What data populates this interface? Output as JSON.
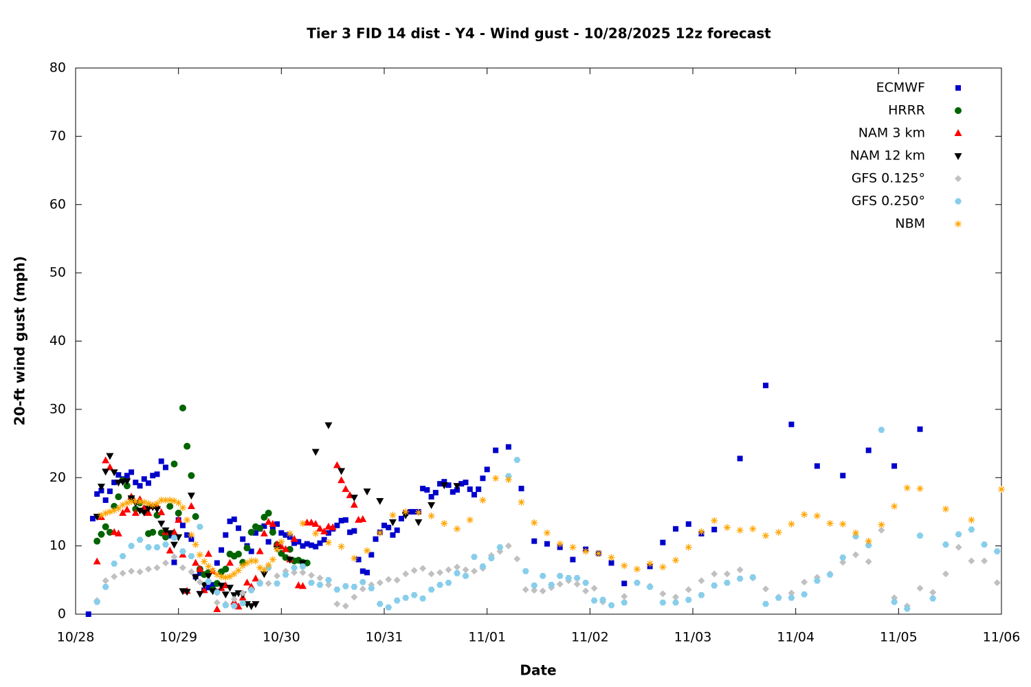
{
  "chart_data": {
    "type": "scatter",
    "title": "Tier 3 FID 14 dist - Y4 - Wind gust - 10/28/2025 12z forecast",
    "x_label": "Date",
    "y_label": "20-ft wind gust (mph)",
    "xlim": [
      0,
      216
    ],
    "xticks": [
      {
        "value": 0,
        "label": "10/28"
      },
      {
        "value": 24,
        "label": "10/29"
      },
      {
        "value": 48,
        "label": "10/30"
      },
      {
        "value": 72,
        "label": "10/31"
      },
      {
        "value": 96,
        "label": "11/01"
      },
      {
        "value": 120,
        "label": "11/02"
      },
      {
        "value": 144,
        "label": "11/03"
      },
      {
        "value": 168,
        "label": "11/04"
      },
      {
        "value": 192,
        "label": "11/05"
      },
      {
        "value": 216,
        "label": "11/06"
      }
    ],
    "ylim": [
      0,
      80
    ],
    "yticks": [
      0,
      10,
      20,
      30,
      40,
      50,
      60,
      70,
      80
    ],
    "legend": "top-right",
    "series": [
      {
        "name": "ECMWF",
        "color": "#0000cc",
        "marker": "square",
        "x": [
          3,
          4,
          5,
          6,
          7,
          8,
          9,
          10,
          11,
          12,
          13,
          14,
          15,
          16,
          17,
          18,
          19,
          20,
          21,
          22,
          23,
          24,
          25,
          26,
          27,
          28,
          29,
          30,
          31,
          32,
          33,
          34,
          35,
          36,
          37,
          38,
          39,
          40,
          41,
          42,
          43,
          44,
          45,
          46,
          47,
          48,
          49,
          50,
          51,
          52,
          53,
          54,
          55,
          56,
          57,
          58,
          59,
          60,
          61,
          62,
          63,
          64,
          65,
          66,
          67,
          68,
          69,
          70,
          71,
          72,
          73,
          74,
          75,
          76,
          77,
          78,
          79,
          80,
          81,
          82,
          83,
          84,
          85,
          86,
          87,
          88,
          89,
          90,
          91,
          92,
          93,
          94,
          95,
          96,
          98,
          101,
          104,
          107,
          110,
          113,
          116,
          119,
          122,
          125,
          128,
          134,
          137,
          140,
          143,
          146,
          149,
          155,
          161,
          167,
          173,
          179,
          185,
          191,
          197
        ],
        "values": [
          0,
          14,
          17.6,
          18.1,
          16.7,
          18,
          19.3,
          20.4,
          19.8,
          20.3,
          20.8,
          19.3,
          18.8,
          19.8,
          19.2,
          20.3,
          20.5,
          22.4,
          21.5,
          11.5,
          7.6,
          13.8,
          13,
          11.6,
          11,
          5.5,
          6,
          3.5,
          3.9,
          4.3,
          7.5,
          9.4,
          11.6,
          13.6,
          13.9,
          12.6,
          11,
          10,
          9.2,
          11.9,
          12.5,
          12.9,
          10.6,
          12.6,
          13.2,
          11.9,
          11.6,
          11.3,
          10.4,
          10.6,
          10,
          10.3,
          10.1,
          9.9,
          10.4,
          10.9,
          11.9,
          12.5,
          13,
          13.7,
          13.8,
          12,
          12.2,
          8,
          6.3,
          6.1,
          8.7,
          11,
          12,
          13,
          12.7,
          11.6,
          12.3,
          14,
          14.8,
          15,
          15,
          15,
          18.4,
          18.2,
          17.2,
          17.8,
          19.1,
          19.4,
          18.9,
          17.9,
          18.2,
          19.1,
          19.3,
          18.3,
          17.5,
          18.3,
          19.9,
          21.2,
          24,
          24.5,
          18.4,
          10.7,
          10.3,
          9.8,
          8,
          9.5,
          8.9,
          7.5,
          4.5,
          7,
          10.5,
          12.5,
          13.2,
          11.8,
          12.4,
          22.8,
          33.5,
          27.8,
          21.7,
          20.3,
          24,
          21.7,
          27.1
        ]
      },
      {
        "name": "HRRR",
        "color": "#006400",
        "marker": "circle",
        "x": [
          5,
          6,
          7,
          8,
          9,
          10,
          11,
          12,
          13,
          14,
          15,
          16,
          17,
          18,
          19,
          20,
          21,
          22,
          23,
          24,
          25,
          26,
          27,
          28,
          29,
          30,
          31,
          32,
          33,
          34,
          35,
          36,
          37,
          38,
          39,
          40,
          41,
          42,
          43,
          44,
          45,
          46,
          47,
          48,
          49,
          50,
          51,
          52,
          53,
          54
        ],
        "values": [
          10.7,
          11.7,
          12.8,
          12,
          15.8,
          17.2,
          19.6,
          18.8,
          17,
          15.4,
          16.3,
          15.1,
          11.8,
          12,
          14.5,
          11.9,
          11.3,
          15.8,
          22,
          14.8,
          30.2,
          24.6,
          20.3,
          14.3,
          6.6,
          5.8,
          6.1,
          3.6,
          4.5,
          6.2,
          6.6,
          8.8,
          8.5,
          8.8,
          7.6,
          9.7,
          12,
          12.8,
          12.6,
          14.2,
          14.8,
          12,
          10.2,
          8.9,
          8.3,
          9.5,
          7.8,
          7.9,
          7.6,
          7.5
        ]
      },
      {
        "name": "NAM 3 km",
        "color": "#ff0000",
        "marker": "triangle-up",
        "x": [
          5,
          6,
          7,
          8,
          9,
          10,
          11,
          12,
          13,
          14,
          15,
          16,
          17,
          18,
          19,
          20,
          21,
          22,
          23,
          24,
          25,
          26,
          27,
          28,
          29,
          30,
          31,
          32,
          33,
          34,
          35,
          36,
          37,
          38,
          39,
          40,
          41,
          42,
          43,
          44,
          45,
          46,
          47,
          48,
          49,
          50,
          51,
          52,
          53,
          54,
          55,
          56,
          57,
          58,
          59,
          60,
          61,
          62,
          63,
          64,
          65,
          66,
          67
        ],
        "values": [
          7.7,
          14.2,
          22.5,
          21.5,
          12,
          11.8,
          14.8,
          15.3,
          17.2,
          14.8,
          16.8,
          15.6,
          14.8,
          15.8,
          15.8,
          14.9,
          12,
          9.3,
          12,
          13.8,
          8.7,
          3.4,
          15.8,
          7.5,
          6.6,
          3.5,
          8.8,
          6.3,
          0.7,
          3.8,
          4.2,
          7.5,
          1.8,
          1.1,
          2.4,
          4.6,
          4,
          5.2,
          9.2,
          11.8,
          13.5,
          13.2,
          10.2,
          9.9,
          9.5,
          8,
          11,
          4.2,
          4.1,
          13.4,
          13.4,
          13.2,
          12.5,
          12.1,
          12.8,
          12.7,
          21.8,
          19.6,
          18.3,
          17.4,
          16,
          13.8,
          13.9
        ]
      },
      {
        "name": "NAM 12 km",
        "color": "#000000",
        "marker": "triangle-down",
        "x": [
          5,
          6,
          7,
          8,
          9,
          10,
          11,
          12,
          13,
          14,
          15,
          16,
          17,
          18,
          19,
          20,
          21,
          22,
          23,
          24,
          25,
          26,
          27,
          28,
          29,
          30,
          31,
          32,
          33,
          34,
          35,
          36,
          37,
          38,
          39,
          40,
          41,
          42,
          44,
          47,
          50,
          53,
          56,
          59,
          62,
          65,
          68,
          71,
          74,
          77,
          80,
          83,
          86,
          89
        ],
        "values": [
          14.3,
          18.7,
          20.9,
          23.2,
          20.8,
          19.3,
          19.4,
          19.5,
          17,
          16.3,
          15.2,
          14.9,
          15.5,
          15.7,
          15.4,
          13.3,
          12.3,
          11.9,
          10.2,
          11.3,
          3.4,
          3.3,
          17.4,
          5.4,
          3,
          4.3,
          5.6,
          3.4,
          3.3,
          4.2,
          2.9,
          3.9,
          2.8,
          3.1,
          2.9,
          1.5,
          1.2,
          1.5,
          5.9,
          9.6,
          8,
          7.5,
          23.8,
          27.7,
          21,
          17.1,
          18,
          16.6,
          13.5,
          14.5,
          13.5,
          16,
          18.9,
          18.8
        ]
      },
      {
        "name": "GFS 0.125°",
        "color": "#c0c0c0",
        "marker": "diamond",
        "x": [
          5,
          7,
          9,
          11,
          13,
          15,
          17,
          19,
          21,
          23,
          25,
          27,
          29,
          31,
          33,
          35,
          37,
          39,
          41,
          43,
          45,
          47,
          49,
          51,
          53,
          55,
          57,
          59,
          61,
          63,
          65,
          67,
          69,
          71,
          73,
          75,
          77,
          79,
          81,
          83,
          85,
          87,
          89,
          91,
          93,
          95,
          97,
          99,
          101,
          103,
          105,
          107,
          109,
          111,
          113,
          115,
          117,
          119,
          121,
          123,
          128,
          131,
          134,
          137,
          140,
          143,
          146,
          149,
          152,
          155,
          158,
          161,
          164,
          167,
          170,
          173,
          176,
          179,
          182,
          185,
          188,
          191,
          194,
          197,
          200,
          203,
          206,
          209,
          212,
          215
        ],
        "values": [
          2,
          4.9,
          5.5,
          6,
          6.3,
          6.2,
          6.6,
          6.8,
          7.5,
          8.4,
          6.8,
          6.2,
          4.7,
          4.8,
          1.7,
          1.5,
          2.2,
          3.1,
          3.6,
          4.7,
          4.5,
          5.6,
          6.3,
          6.1,
          6.1,
          5.7,
          5.3,
          4.3,
          1.5,
          1.2,
          2.5,
          3.7,
          4.3,
          4.6,
          5.1,
          5,
          5.9,
          6.4,
          6.7,
          5.9,
          6.1,
          6.5,
          6.9,
          6.5,
          6.3,
          6.7,
          8.6,
          9.2,
          10,
          8.1,
          3.6,
          3.5,
          3.4,
          3.9,
          4.4,
          4.9,
          4.4,
          3.4,
          3.8,
          1.8,
          2.6,
          4.6,
          4.1,
          3,
          2.5,
          3.6,
          4.9,
          5.9,
          5.9,
          6.5,
          5.3,
          3.7,
          2.5,
          3.1,
          4.7,
          5.4,
          5.9,
          7.6,
          8.7,
          7.7,
          12.3,
          2.4,
          1.2,
          3.8,
          3.2,
          5.9,
          9.8,
          7.8,
          7.8,
          4.6
        ]
      },
      {
        "name": "GFS 0.250°",
        "color": "#87ceeb",
        "marker": "hexagon",
        "x": [
          5,
          7,
          9,
          11,
          13,
          15,
          17,
          19,
          21,
          23,
          25,
          27,
          29,
          31,
          33,
          35,
          37,
          39,
          41,
          43,
          45,
          47,
          49,
          51,
          53,
          55,
          57,
          59,
          61,
          63,
          65,
          67,
          69,
          71,
          73,
          75,
          77,
          79,
          81,
          83,
          85,
          87,
          89,
          91,
          93,
          95,
          97,
          99,
          101,
          103,
          105,
          107,
          109,
          111,
          113,
          115,
          117,
          119,
          121,
          123,
          125,
          128,
          131,
          134,
          137,
          140,
          143,
          146,
          149,
          152,
          155,
          158,
          161,
          164,
          167,
          170,
          173,
          176,
          179,
          182,
          185,
          188,
          191,
          194,
          197,
          200,
          203,
          206,
          209,
          212,
          215
        ],
        "values": [
          1.8,
          4,
          7.4,
          8.5,
          10,
          10.9,
          9.8,
          9.8,
          10.2,
          11.2,
          9.2,
          8.5,
          12.8,
          4.8,
          3.2,
          1.3,
          1.2,
          1.6,
          3.5,
          4.5,
          6.8,
          4.5,
          5.8,
          6.8,
          7,
          4.6,
          4.3,
          5,
          3.6,
          4.1,
          4,
          4.7,
          3.8,
          1.5,
          1,
          2,
          2.4,
          2.8,
          2.3,
          3.6,
          4.3,
          4.6,
          6,
          5.6,
          8.4,
          7,
          8.2,
          9.8,
          20.2,
          22.6,
          6.3,
          4.2,
          5.6,
          4.3,
          5.6,
          5.3,
          5.3,
          4.6,
          2,
          2.1,
          1.3,
          1.7,
          4.6,
          4,
          1.7,
          1.7,
          2.1,
          2.8,
          4.2,
          4.6,
          5.2,
          5.4,
          1.5,
          2.4,
          2.4,
          2.9,
          4.9,
          5.8,
          8.3,
          11.4,
          10.1,
          27,
          1.8,
          0.8,
          11.5,
          2.3,
          10.2,
          11.7,
          12.4,
          10.2,
          9.2
        ]
      },
      {
        "name": "NBM",
        "color": "#ffa500",
        "marker": "asterisk",
        "x": [
          6,
          7,
          8,
          9,
          10,
          11,
          12,
          13,
          14,
          15,
          16,
          17,
          18,
          19,
          20,
          21,
          22,
          23,
          24,
          25,
          26,
          27,
          28,
          29,
          30,
          31,
          32,
          33,
          34,
          35,
          36,
          37,
          38,
          39,
          40,
          41,
          42,
          43,
          44,
          45,
          46,
          47,
          48,
          50,
          53,
          56,
          59,
          62,
          65,
          68,
          71,
          74,
          77,
          80,
          83,
          86,
          89,
          92,
          95,
          98,
          101,
          104,
          107,
          110,
          113,
          116,
          119,
          122,
          125,
          128,
          131,
          134,
          137,
          140,
          143,
          146,
          149,
          152,
          155,
          158,
          161,
          164,
          167,
          170,
          173,
          176,
          179,
          182,
          185,
          188,
          191,
          194,
          197,
          203,
          209,
          216
        ],
        "values": [
          14.5,
          14.8,
          15,
          15.2,
          15.5,
          16,
          16.3,
          16.5,
          16.5,
          16.5,
          16.4,
          16.2,
          16,
          16.2,
          16.7,
          16.7,
          16.7,
          16.6,
          16.3,
          15.6,
          13.8,
          11.6,
          10.2,
          8.7,
          7.7,
          7,
          6.4,
          5.8,
          5.5,
          5.4,
          5.5,
          5.9,
          6.4,
          7.1,
          7.5,
          7.8,
          7.8,
          6.8,
          6.5,
          7.2,
          8,
          9.5,
          10.6,
          11.8,
          13.3,
          11.8,
          10.5,
          9.9,
          8.2,
          9.3,
          11.9,
          14.5,
          15,
          14.9,
          14.4,
          13.3,
          12.5,
          13.8,
          16.7,
          19.9,
          19.7,
          16.4,
          13.4,
          11.9,
          10.3,
          9.8,
          9.2,
          8.9,
          8.3,
          7.1,
          6.6,
          7.4,
          6.9,
          7.9,
          9.8,
          12.1,
          13.7,
          12.7,
          12.3,
          12.5,
          11.5,
          12,
          13.2,
          14.6,
          14.4,
          13.3,
          13.2,
          11.9,
          10.7,
          13.1,
          15.8,
          18.5,
          18.4,
          15.4,
          13.8,
          18.3
        ]
      }
    ]
  }
}
